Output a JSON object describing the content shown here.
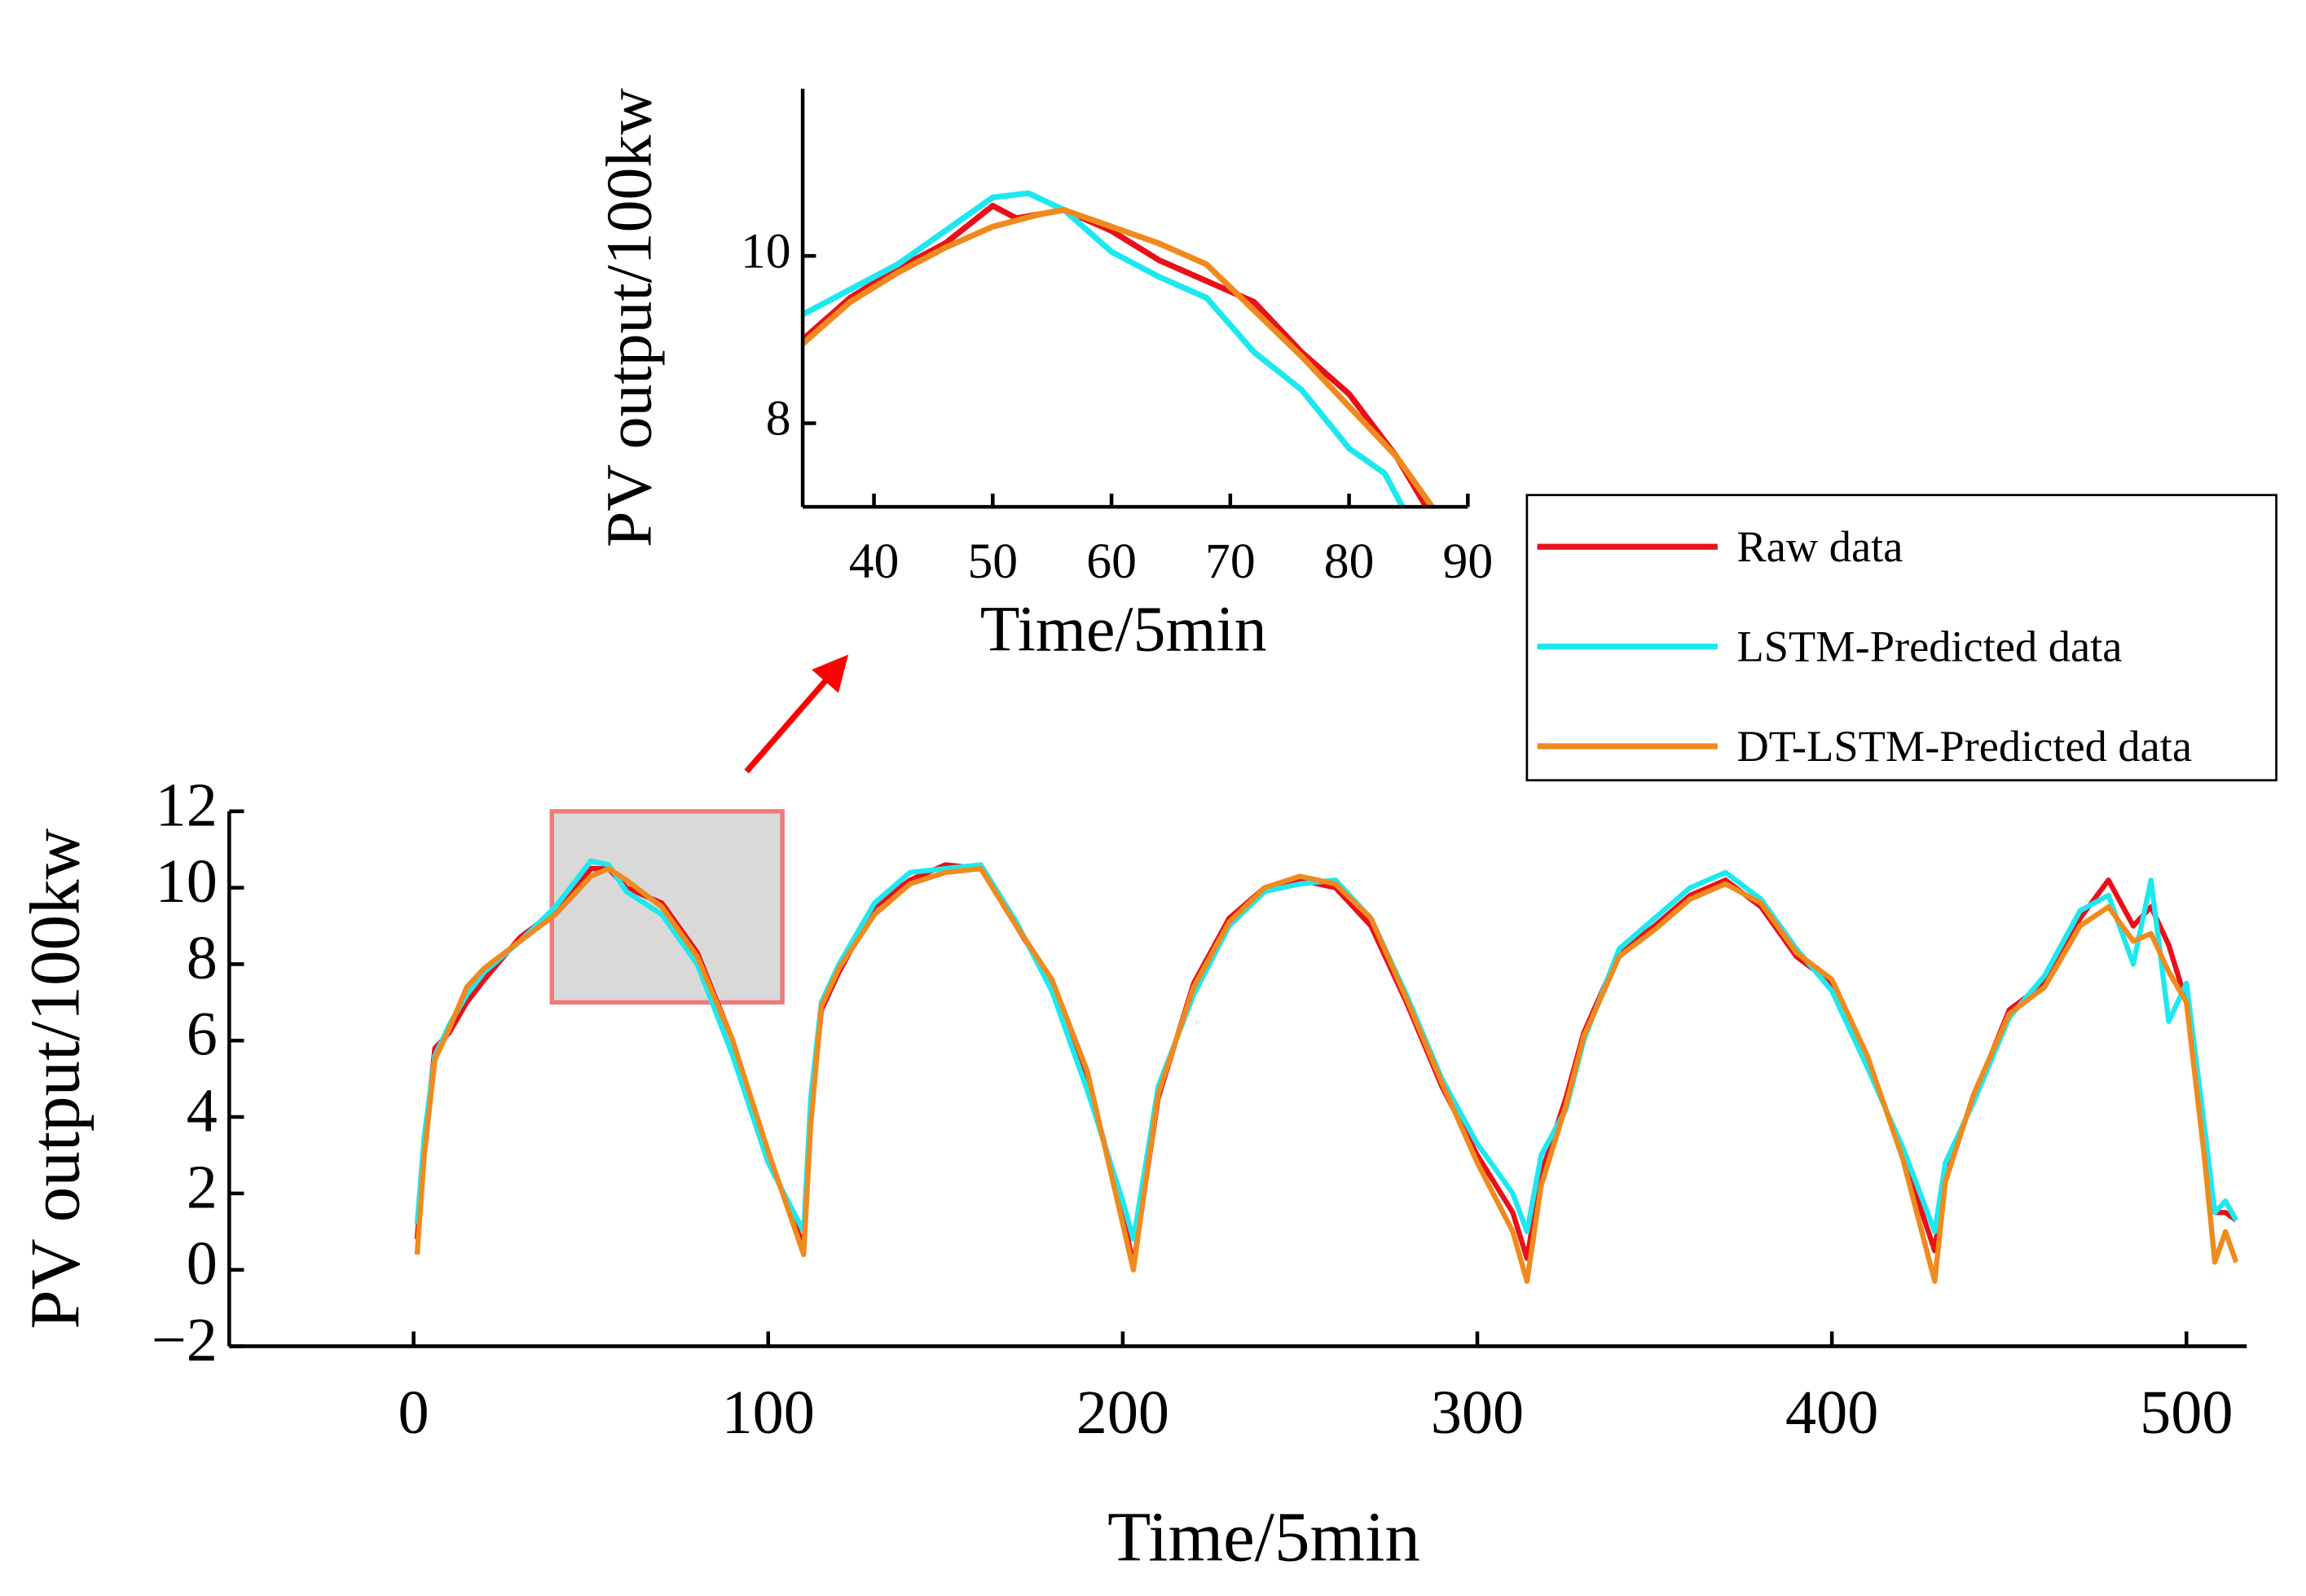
{
  "chart_data": [
    {
      "type": "line",
      "xlabel": "Time/5min",
      "ylabel": "PV output/100kw",
      "xlim": [
        -52,
        517
      ],
      "ylim": [
        -2,
        12
      ],
      "xticks": [
        0,
        100,
        200,
        300,
        400,
        500
      ],
      "yticks": [
        {
          "value": -2,
          "label": "−2"
        },
        0,
        2,
        4,
        6,
        8,
        10,
        12
      ],
      "highlight": {
        "x": [
          39,
          104
        ],
        "y": [
          7,
          12
        ]
      },
      "x": [
        1,
        3,
        6,
        10,
        15,
        20,
        30,
        40,
        50,
        55,
        60,
        70,
        80,
        90,
        100,
        110,
        112,
        115,
        120,
        130,
        140,
        150,
        160,
        170,
        180,
        190,
        200,
        203,
        206,
        210,
        220,
        230,
        240,
        250,
        260,
        270,
        280,
        290,
        300,
        310,
        314,
        318,
        325,
        330,
        340,
        350,
        360,
        370,
        380,
        390,
        400,
        410,
        420,
        429,
        432,
        440,
        450,
        460,
        470,
        478,
        485,
        490,
        495,
        500,
        505,
        508,
        511,
        514
      ],
      "series": [
        {
          "name": "Raw data",
          "color": "#e8101a",
          "values": [
            0.8,
            3.2,
            5.8,
            6.2,
            7.0,
            7.6,
            8.7,
            9.4,
            10.5,
            10.5,
            10.0,
            9.6,
            8.3,
            6.0,
            3.0,
            0.6,
            4.0,
            6.8,
            7.8,
            9.5,
            10.2,
            10.6,
            10.5,
            9.0,
            7.5,
            5.0,
            1.5,
            0.1,
            2.0,
            4.5,
            7.5,
            9.2,
            10.0,
            10.2,
            10.0,
            9.0,
            7.0,
            4.8,
            3.0,
            1.5,
            0.3,
            2.5,
            4.5,
            6.2,
            8.3,
            9.0,
            9.8,
            10.2,
            9.5,
            8.2,
            7.5,
            5.5,
            3.0,
            0.5,
            2.5,
            4.5,
            6.8,
            7.5,
            9.2,
            10.2,
            9.0,
            9.5,
            8.5,
            7.0,
            3.5,
            1.5,
            1.5,
            1.3
          ]
        },
        {
          "name": "LSTM-Predicted data",
          "color": "#1ee8ef",
          "values": [
            1.2,
            3.5,
            5.6,
            6.4,
            7.2,
            7.8,
            8.6,
            9.5,
            10.7,
            10.6,
            9.9,
            9.3,
            8.0,
            5.6,
            2.8,
            1.0,
            4.5,
            7.0,
            8.0,
            9.6,
            10.4,
            10.5,
            10.6,
            9.1,
            7.3,
            4.7,
            1.8,
            0.8,
            2.5,
            4.8,
            7.2,
            9.0,
            9.9,
            10.1,
            10.2,
            9.2,
            7.2,
            5.0,
            3.3,
            2.0,
            1.0,
            3.0,
            4.2,
            6.0,
            8.4,
            9.2,
            10.0,
            10.4,
            9.7,
            8.4,
            7.3,
            5.3,
            3.2,
            1.0,
            2.8,
            4.4,
            6.6,
            7.7,
            9.4,
            9.8,
            8.0,
            10.2,
            6.5,
            7.5,
            3.8,
            1.5,
            1.8,
            1.3
          ]
        },
        {
          "name": "DT-LSTM-Predicted data",
          "color": "#f08a1e",
          "values": [
            0.4,
            3.0,
            5.5,
            6.3,
            7.4,
            7.9,
            8.6,
            9.3,
            10.3,
            10.5,
            10.2,
            9.5,
            8.2,
            6.0,
            3.1,
            0.4,
            3.8,
            6.9,
            7.9,
            9.3,
            10.1,
            10.4,
            10.5,
            9.0,
            7.6,
            5.2,
            1.2,
            0.0,
            2.0,
            4.6,
            7.4,
            9.1,
            10.0,
            10.3,
            10.1,
            9.2,
            7.1,
            4.9,
            2.8,
            1.0,
            -0.3,
            2.2,
            4.3,
            6.1,
            8.2,
            8.9,
            9.7,
            10.1,
            9.6,
            8.3,
            7.6,
            5.6,
            2.9,
            -0.3,
            2.3,
            4.6,
            6.7,
            7.4,
            9.0,
            9.5,
            8.6,
            8.8,
            7.8,
            7.0,
            3.0,
            0.2,
            1.0,
            0.2
          ]
        }
      ]
    },
    {
      "type": "line",
      "xlabel": "Time/5min",
      "ylabel": "PV output/100kw",
      "xlim": [
        34,
        90
      ],
      "ylim": [
        7,
        12
      ],
      "xticks": [
        40,
        50,
        60,
        70,
        80,
        90
      ],
      "yticks": [
        8,
        10
      ],
      "series": [
        {
          "color": "#e8101a",
          "x": [
            34,
            38,
            42,
            46,
            50,
            52,
            54,
            56,
            60,
            64,
            68,
            72,
            76,
            80,
            84,
            86.5
          ],
          "values": [
            9.0,
            9.5,
            9.85,
            10.15,
            10.6,
            10.45,
            10.5,
            10.55,
            10.3,
            9.95,
            9.7,
            9.45,
            8.85,
            8.35,
            7.6,
            7.0
          ]
        },
        {
          "color": "#1ee8ef",
          "x": [
            34,
            38,
            42,
            46,
            50,
            53,
            56,
            60,
            64,
            68,
            72,
            76,
            80,
            83,
            84.5
          ],
          "values": [
            9.3,
            9.6,
            9.9,
            10.3,
            10.7,
            10.75,
            10.55,
            10.05,
            9.75,
            9.5,
            8.85,
            8.4,
            7.7,
            7.4,
            7.0
          ]
        },
        {
          "color": "#f08a1e",
          "x": [
            34,
            38,
            42,
            46,
            50,
            54,
            56,
            60,
            64,
            68,
            72,
            76,
            80,
            84,
            87
          ],
          "values": [
            8.95,
            9.45,
            9.8,
            10.1,
            10.35,
            10.5,
            10.55,
            10.35,
            10.15,
            9.9,
            9.35,
            8.8,
            8.2,
            7.6,
            7.0
          ]
        }
      ]
    }
  ]
}
